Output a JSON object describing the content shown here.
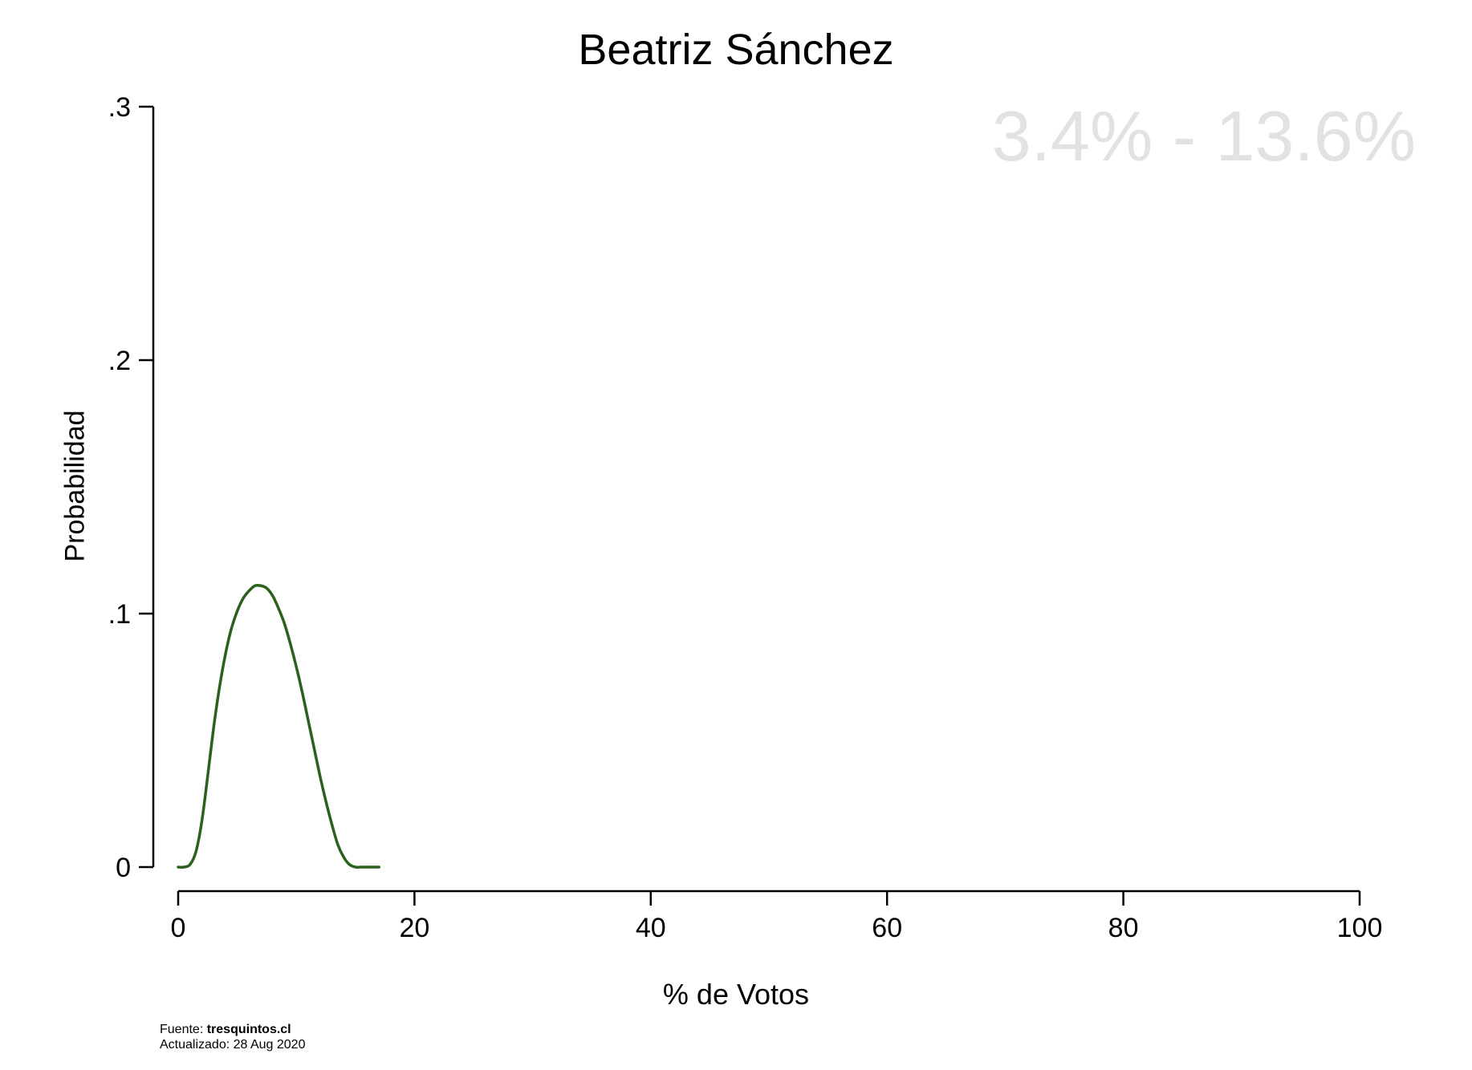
{
  "title": "Beatriz Sánchez",
  "range_label": "3.4% - 13.6%",
  "footer": {
    "source_prefix": "Fuente:",
    "source_value": "tresquintos.cl",
    "updated": "Actualizado: 28 Aug 2020"
  },
  "colors": {
    "line": "#2a621c",
    "range_label": "#e2e2e2",
    "axis": "#000000"
  },
  "chart_data": {
    "type": "line",
    "title": "Beatriz Sánchez",
    "xlabel": "% de Votos",
    "ylabel": "Probabilidad",
    "xlim": [
      0,
      100
    ],
    "ylim": [
      0,
      0.3
    ],
    "x_ticks": [
      0,
      20,
      40,
      60,
      80,
      100
    ],
    "x_tick_labels": [
      "0",
      "20",
      "40",
      "60",
      "80",
      "100"
    ],
    "y_ticks": [
      0,
      0.1,
      0.2,
      0.3
    ],
    "y_tick_labels": [
      "0",
      ".1",
      ".2",
      ".3"
    ],
    "grid": false,
    "legend": "none",
    "annotation": "3.4% - 13.6%",
    "series": [
      {
        "x": [
          0,
          0.5,
          1,
          1.5,
          2,
          2.5,
          3,
          3.5,
          4,
          4.5,
          5,
          5.5,
          6,
          6.5,
          7,
          7.5,
          8,
          8.5,
          9,
          9.5,
          10,
          10.5,
          11,
          11.5,
          12,
          12.5,
          13,
          13.5,
          14,
          14.5,
          15,
          15.5,
          16,
          16.5,
          17
        ],
        "y": [
          0,
          0,
          0.001,
          0.006,
          0.018,
          0.036,
          0.055,
          0.071,
          0.084,
          0.094,
          0.101,
          0.106,
          0.109,
          0.111,
          0.111,
          0.11,
          0.107,
          0.102,
          0.096,
          0.088,
          0.079,
          0.069,
          0.058,
          0.047,
          0.036,
          0.026,
          0.017,
          0.009,
          0.004,
          0.001,
          0,
          0,
          0,
          0,
          0
        ]
      }
    ]
  }
}
